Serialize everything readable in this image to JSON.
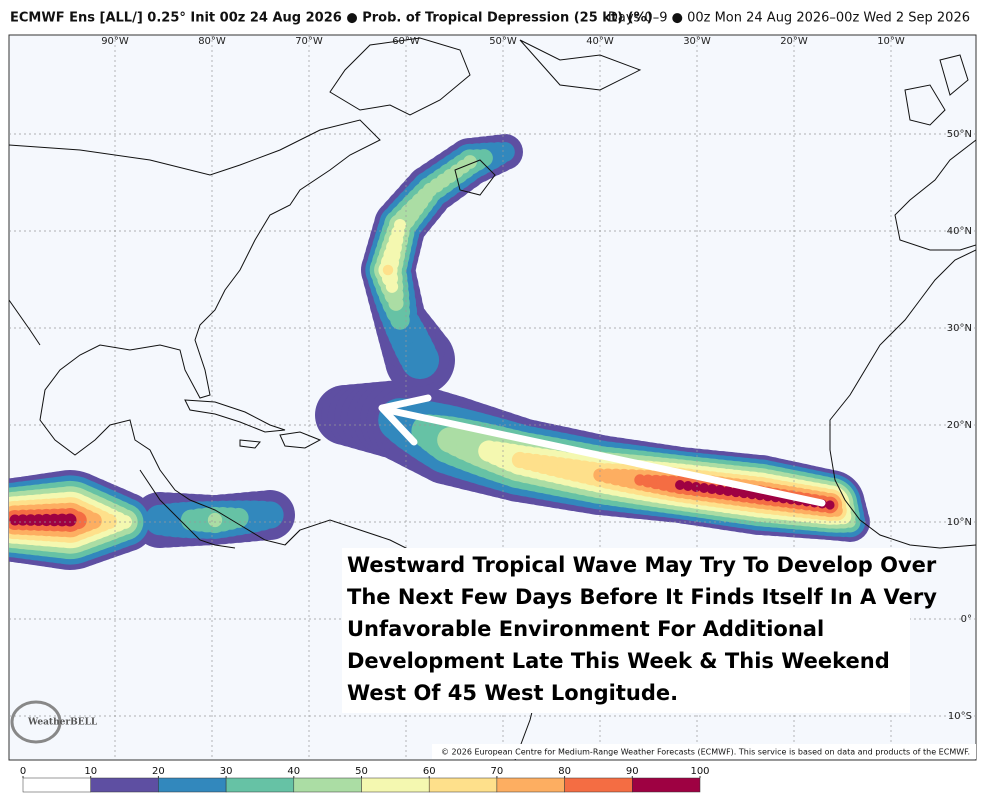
{
  "header": {
    "left": "ECMWF Ens [ALL/] 0.25° Init 00z 24 Aug 2026 ● Prob. of Tropical Depression (25 kt) (%)",
    "right": "Days 0–9 ● 00z Mon 24 Aug 2026–00z Wed 2 Sep 2026"
  },
  "map": {
    "lon_labels": [
      {
        "value": -90,
        "label": "90°W"
      },
      {
        "value": -80,
        "label": "80°W"
      },
      {
        "value": -70,
        "label": "70°W"
      },
      {
        "value": -60,
        "label": "60°W"
      },
      {
        "value": -50,
        "label": "50°W"
      },
      {
        "value": -40,
        "label": "40°W"
      },
      {
        "value": -30,
        "label": "30°W"
      },
      {
        "value": -20,
        "label": "20°W"
      },
      {
        "value": -10,
        "label": "10°W"
      }
    ],
    "lat_labels": [
      {
        "value": 50,
        "label": "50°N"
      },
      {
        "value": 40,
        "label": "40°N"
      },
      {
        "value": 30,
        "label": "30°N"
      },
      {
        "value": 20,
        "label": "20°N"
      },
      {
        "value": 10,
        "label": "10°N"
      },
      {
        "value": 0,
        "label": "0°"
      },
      {
        "value": -10,
        "label": "10°S"
      }
    ]
  },
  "annotation": {
    "lines": [
      "Westward Tropical Wave May Try To Develop Over",
      "The Next Few Days Before It Finds Itself In A Very",
      "Unfavorable Environment For Additional",
      "Development Late This Week & This Weekend",
      "West Of 45 West Longitude."
    ]
  },
  "footer": {
    "copyright": "© 2026 European Centre for Medium-Range Weather Forecasts (ECMWF). This service is based on data and products of the ECMWF."
  },
  "logo": "WeatherBELL",
  "colorbar": {
    "ticks": [
      0,
      10,
      20,
      30,
      40,
      50,
      60,
      70,
      80,
      90,
      100
    ],
    "colors": [
      "#ffffff",
      "#5e4fa2",
      "#3288bd",
      "#66c2a5",
      "#abdda4",
      "#f4f8b0",
      "#fee08b",
      "#fdae61",
      "#f46d43",
      "#9e0142"
    ]
  }
}
